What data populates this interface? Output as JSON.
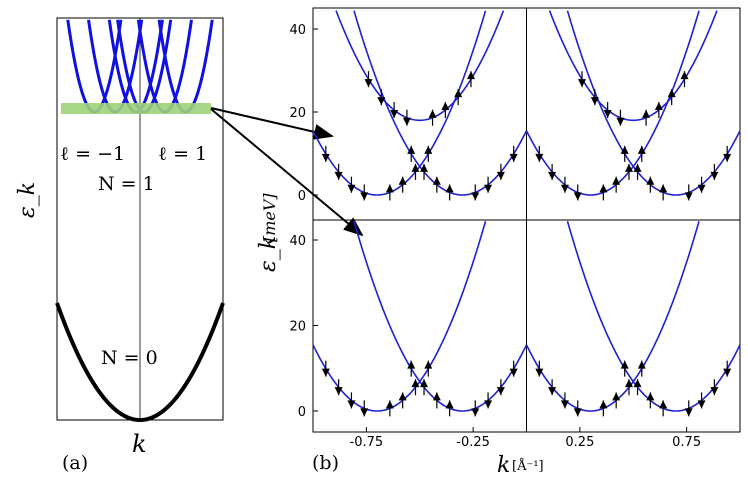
{
  "figure": {
    "panel_a_label": "(a)",
    "panel_b_label": "(b)"
  },
  "chart_data": [
    {
      "type": "line",
      "panel": "(a)",
      "title": "",
      "xlabel": "k",
      "ylabel": "ε_k",
      "annotations": {
        "n_upper": "N = 1",
        "n_lower": "N = 0",
        "l_left": "ℓ = −1",
        "l_right": "ℓ = 1"
      },
      "series": [
        {
          "band": "N=0",
          "vertex_k": 0,
          "color": "#000000"
        },
        {
          "band": "N=1",
          "vertex_k": -0.55,
          "color": "#1010e0"
        },
        {
          "band": "N=1",
          "vertex_k": -0.3,
          "color": "#1010e0"
        },
        {
          "band": "N=1",
          "vertex_k": -0.05,
          "color": "#1010e0"
        },
        {
          "band": "N=1",
          "vertex_k": 0.05,
          "color": "#1010e0"
        },
        {
          "band": "N=1",
          "vertex_k": 0.3,
          "color": "#1010e0"
        },
        {
          "band": "N=1",
          "vertex_k": 0.55,
          "color": "#1010e0"
        }
      ],
      "highlight_band": {
        "color": "#9fd27a"
      }
    },
    {
      "type": "line",
      "panel": "(b)",
      "title": "",
      "xlabel": "k",
      "xunit": "[Å⁻¹]",
      "ylabel": "ε_k",
      "yunit": "[meV]",
      "x_ticks": [
        "-0.75",
        "-0.25",
        "0.25",
        "0.75"
      ],
      "y_ticks": [
        "0",
        "20",
        "40"
      ],
      "xlim": [
        -1,
        1
      ],
      "ylim": [
        -5,
        45
      ],
      "curve_color": "#2020d0",
      "subplots": [
        {
          "name": "top-left",
          "xlim": [
            -1,
            0
          ],
          "curves": [
            {
              "k0": -0.7,
              "a": 172,
              "c": 0
            },
            {
              "k0": -0.3,
              "a": 172,
              "c": 0
            },
            {
              "k0": -0.5,
              "a": 172,
              "c": 18
            }
          ]
        },
        {
          "name": "top-right",
          "xlim": [
            0,
            1
          ],
          "curves": [
            {
              "k0": 0.3,
              "a": 172,
              "c": 0
            },
            {
              "k0": 0.7,
              "a": 172,
              "c": 0
            },
            {
              "k0": 0.5,
              "a": 172,
              "c": 18
            }
          ]
        },
        {
          "name": "bottom-left",
          "xlim": [
            -1,
            0
          ],
          "curves": [
            {
              "k0": -0.7,
              "a": 172,
              "c": 0
            },
            {
              "k0": -0.3,
              "a": 172,
              "c": 0
            }
          ]
        },
        {
          "name": "bottom-right",
          "xlim": [
            0,
            1
          ],
          "curves": [
            {
              "k0": 0.3,
              "a": 172,
              "c": 0
            },
            {
              "k0": 0.7,
              "a": 172,
              "c": 0
            }
          ]
        }
      ]
    }
  ]
}
